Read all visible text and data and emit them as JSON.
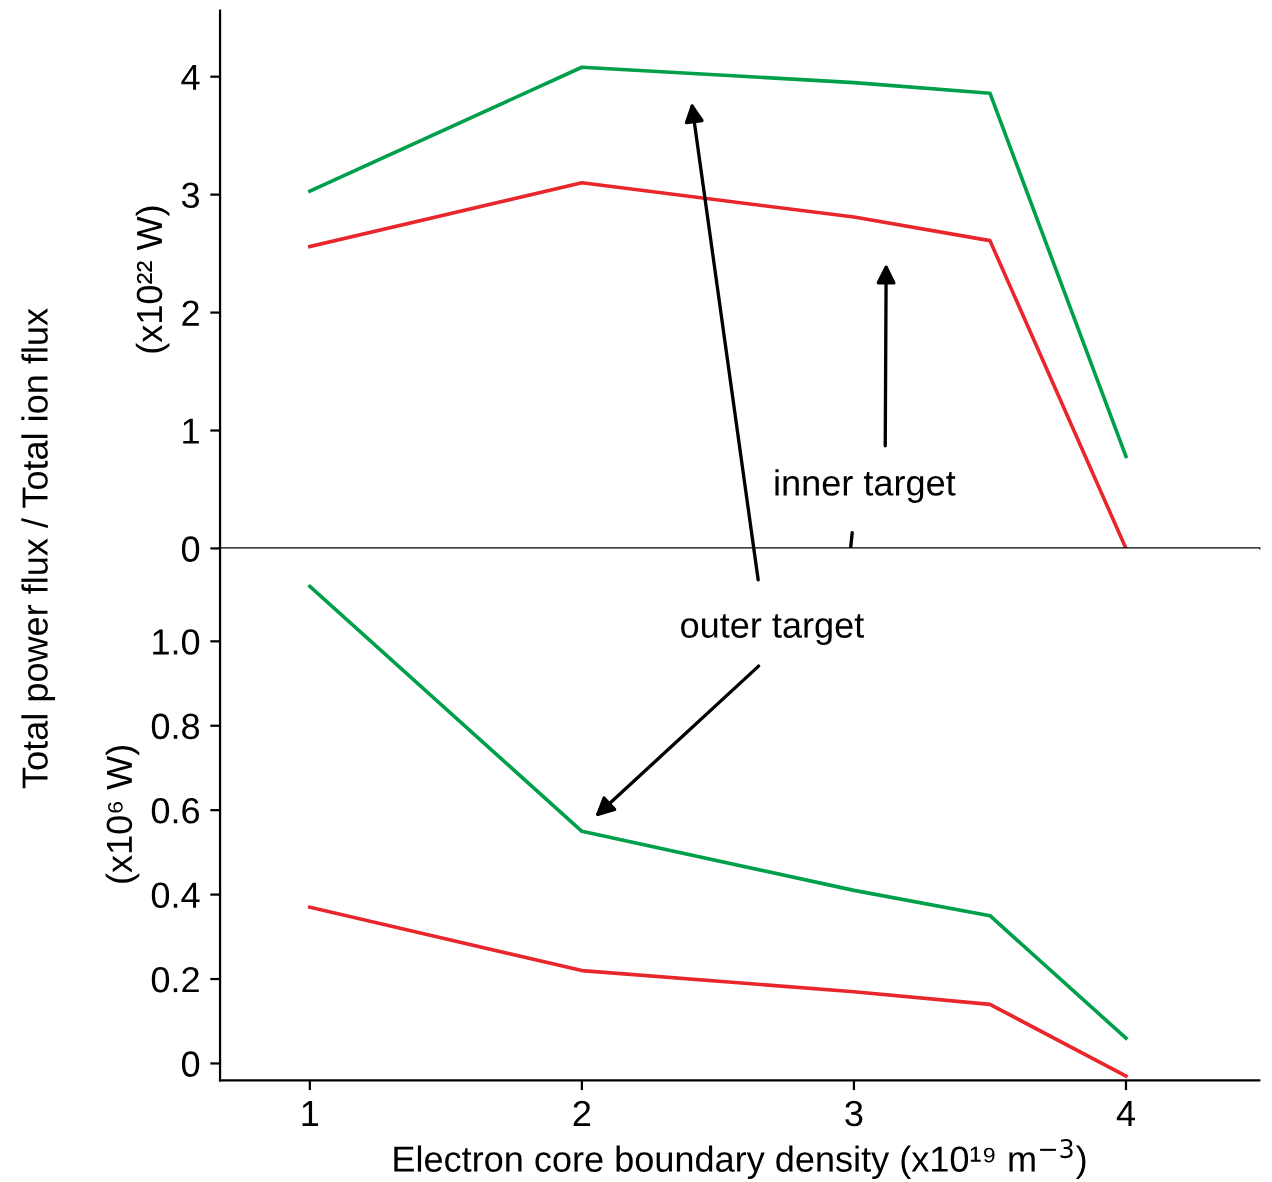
{
  "chart_data": [
    {
      "type": "line",
      "x": [
        1,
        2,
        3,
        3.5,
        4
      ],
      "xlim": [
        0.67,
        4.49
      ],
      "ylim": [
        0,
        4.56
      ],
      "yticks": [
        0,
        1,
        2,
        3,
        4
      ],
      "tick_labels": "y",
      "ylabel": "(x10²² W)",
      "grid": false,
      "legend": false,
      "marker": "none",
      "line_style": "solid",
      "series": [
        {
          "color": "#00a04a",
          "values": [
            3.03,
            4.08,
            3.95,
            3.86,
            0.78
          ]
        },
        {
          "color": "#e8262b",
          "values": [
            2.56,
            3.1,
            2.81,
            2.61,
            0
          ]
        }
      ],
      "annotations": [
        "Total power flux / Total ion flux",
        "inner target"
      ]
    },
    {
      "type": "line",
      "x": [
        1,
        2,
        3,
        3.5,
        4
      ],
      "xlim": [
        0.67,
        4.49
      ],
      "xticks": [
        1,
        2,
        3,
        4
      ],
      "ylim": [
        -0.04,
        1.22
      ],
      "yticks": [
        0,
        0.2,
        0.4,
        0.6,
        0.8,
        {
          "value": 1.0,
          "label": "1.0"
        }
      ],
      "ylabel": "(x10⁶ W)",
      "xlabel": "Electron core boundary density (x10¹⁹ m$^{−3}$)",
      "grid": false,
      "legend": false,
      "marker": "none",
      "line_style": "solid",
      "series": [
        {
          "color": "#00a04a",
          "values": [
            1.13,
            0.55,
            0.41,
            0.35,
            0.06
          ]
        },
        {
          "color": "#e8262b",
          "values": [
            0.37,
            0.22,
            0.17,
            0.14,
            -0.03
          ]
        }
      ],
      "annotations": [
        "outer target"
      ]
    }
  ]
}
